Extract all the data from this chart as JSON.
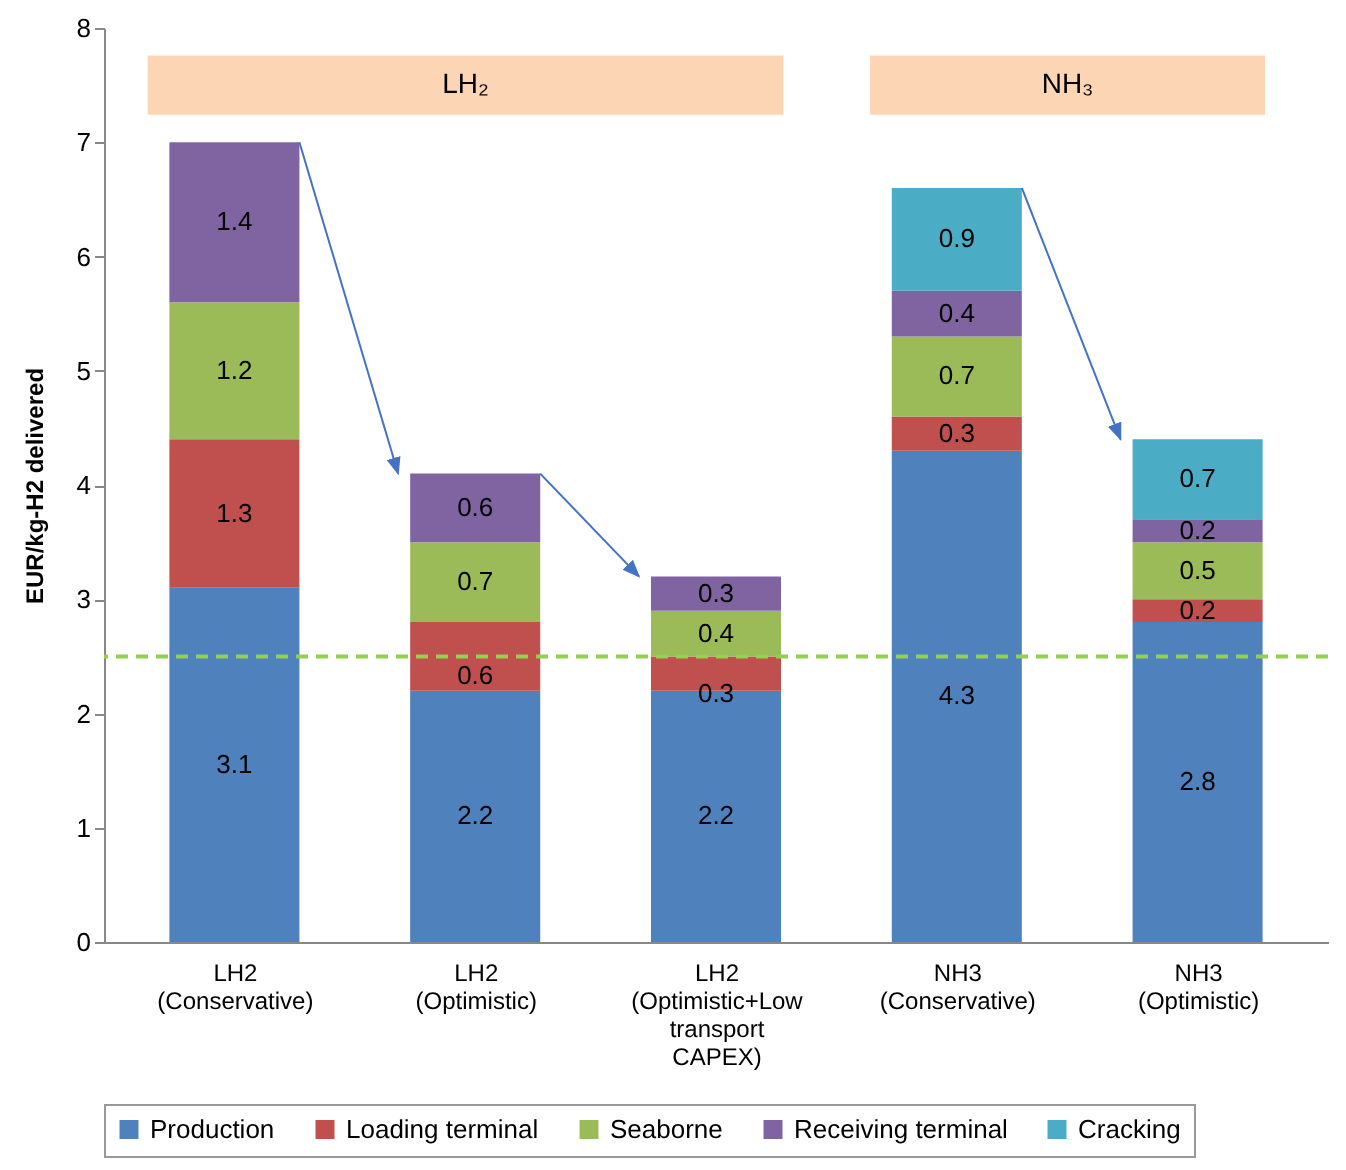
{
  "chart_data": {
    "type": "bar",
    "stacked": true,
    "data_labels": true,
    "ylabel": "EUR/kg-H2 delivered",
    "ylim": [
      0,
      8
    ],
    "yticks": [
      0,
      1,
      2,
      3,
      4,
      5,
      6,
      7,
      8
    ],
    "grid": false,
    "legend": "bottom",
    "categories": [
      "LH2 (Conservative)",
      "LH2 (Optimistic)",
      "LH2 (Optimistic+Low transport CAPEX)",
      "NH3 (Conservative)",
      "NH3 (Optimistic)"
    ],
    "series": [
      {
        "name": "Production",
        "color": "#4f81bd",
        "values": [
          3.1,
          2.2,
          2.2,
          4.3,
          2.8
        ]
      },
      {
        "name": "Loading terminal",
        "color": "#c0504d",
        "values": [
          1.3,
          0.6,
          0.3,
          0.3,
          0.2
        ]
      },
      {
        "name": "Seaborne",
        "color": "#9bbb59",
        "values": [
          1.2,
          0.7,
          0.4,
          0.7,
          0.5
        ]
      },
      {
        "name": "Receiving terminal",
        "color": "#8064a2",
        "values": [
          1.4,
          0.6,
          0.3,
          0.4,
          0.2
        ]
      },
      {
        "name": "Cracking",
        "color": "#4bacc6",
        "values": [
          null,
          null,
          null,
          0.9,
          0.7
        ]
      }
    ],
    "ref_lines": [
      {
        "axis": "y",
        "value": 2.5,
        "color": "#92d050",
        "line_style": "dashed"
      }
    ],
    "bands": [
      {
        "axis": "x",
        "from": "LH2 (Conservative)",
        "to": "LH2 (Optimistic+Low transport CAPEX)",
        "label": "LH₂",
        "color": "#fcd5b5"
      },
      {
        "axis": "x",
        "from": "NH3 (Conservative)",
        "to": "NH3 (Optimistic)",
        "label": "NH₃",
        "color": "#fcd5b5"
      }
    ]
  }
}
